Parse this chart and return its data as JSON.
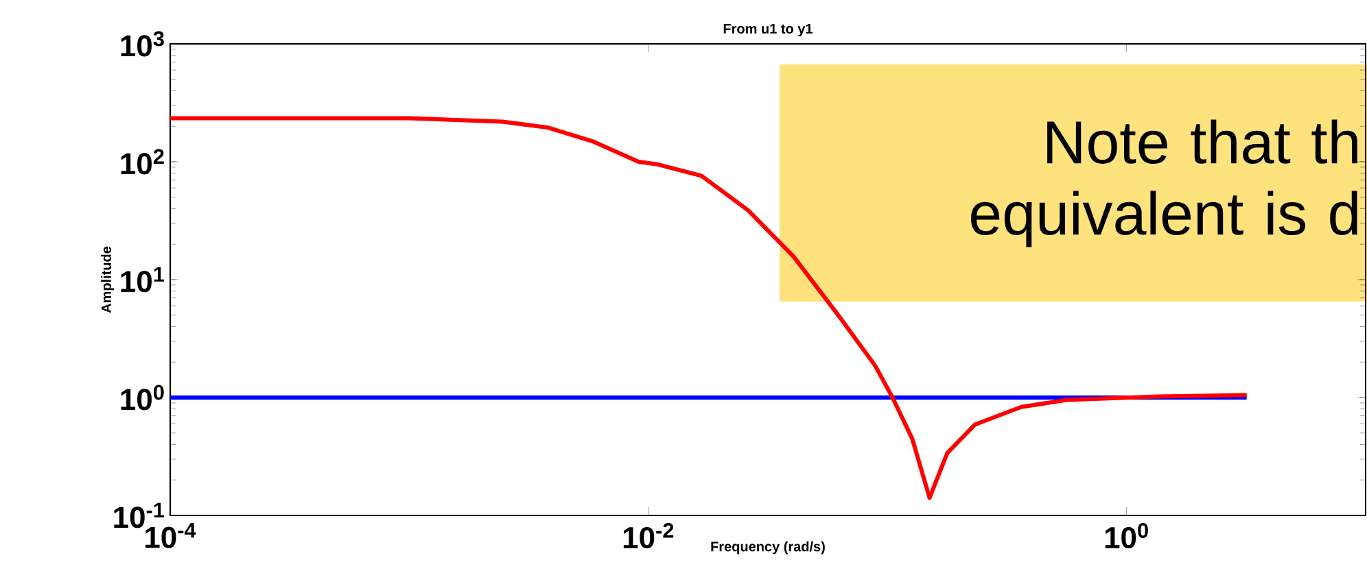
{
  "chart_data": {
    "type": "line",
    "title": "From u1 to y1",
    "xlabel": "Frequency (rad/s)",
    "ylabel": "Amplitude",
    "log": "xy",
    "xlim": [
      0.0001,
      10
    ],
    "ylim": [
      0.1,
      1000
    ],
    "xticks": [
      {
        "value": 0.0001,
        "label": "10$^{-4}$"
      },
      {
        "value": 0.01,
        "label": "10$^{-2}$"
      },
      {
        "value": 1,
        "label": "10$^{0}$"
      }
    ],
    "yticks": [
      {
        "value": 0.1,
        "label": "10$^{-1}$"
      },
      {
        "value": 1,
        "label": "10$^{0}$"
      },
      {
        "value": 10,
        "label": "10$^{1}$"
      },
      {
        "value": 100,
        "label": "10$^{2}$"
      },
      {
        "value": 1000,
        "label": "10$^{3}$"
      }
    ],
    "annotations": [
      "Note that th",
      "equivalent is d"
    ],
    "series": [
      {
        "color": "#0000ff",
        "x": [
          0.0001,
          3.18
        ],
        "values": [
          1,
          1
        ]
      },
      {
        "color": "#ff0000",
        "x": [
          0.0001,
          0.001,
          0.00245,
          0.0038,
          0.0059,
          0.0091,
          0.0108,
          0.0167,
          0.0261,
          0.0404,
          0.0622,
          0.0889,
          0.105,
          0.127,
          0.15,
          0.178,
          0.232,
          0.363,
          0.562,
          1.35,
          3.18
        ],
        "values": [
          234,
          234,
          219,
          195,
          148,
          100,
          95.5,
          75.9,
          38.9,
          15.8,
          5.01,
          1.86,
          1.0,
          0.447,
          0.141,
          0.339,
          0.589,
          0.832,
          0.955,
          1.02,
          1.05
        ]
      }
    ]
  }
}
